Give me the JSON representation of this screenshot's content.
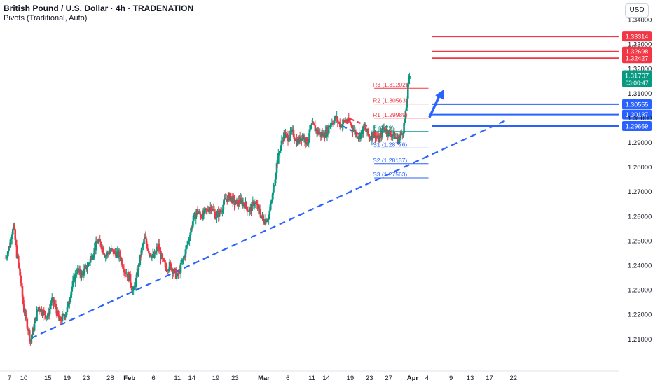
{
  "header": {
    "title": "British Pound / U.S. Dollar · 4h · TRADENATION",
    "subtitle": "Pivots (Traditional, Auto)"
  },
  "currency_button": "USD",
  "colors": {
    "up": "#089981",
    "down": "#f23645",
    "pivot_resistance": "#f23645",
    "pivot_support": "#2962ff",
    "trendline": "#2962ff",
    "price_badge": "#089981",
    "axis_text": "#131722"
  },
  "price_badge": {
    "price": "1.31707",
    "countdown": "03:00:47"
  },
  "chart_data": {
    "type": "candlestick",
    "symbol": "GBPUSD",
    "timeframe": "4h",
    "ylim": [
      1.2045,
      1.3445
    ],
    "y_ticks": [
      "1.34000",
      "1.33000",
      "1.32000",
      "1.31000",
      "1.30000",
      "1.29000",
      "1.28000",
      "1.27000",
      "1.26000",
      "1.25000",
      "1.24000",
      "1.23000",
      "1.22000",
      "1.21000"
    ],
    "x_ticks": [
      {
        "label": "7",
        "day": 7
      },
      {
        "label": "10",
        "day": 10
      },
      {
        "label": "15",
        "day": 15
      },
      {
        "label": "19",
        "day": 19
      },
      {
        "label": "23",
        "day": 23
      },
      {
        "label": "28",
        "day": 28
      },
      {
        "label": "Feb",
        "day": 32,
        "bold": true
      },
      {
        "label": "6",
        "day": 37
      },
      {
        "label": "11",
        "day": 42
      },
      {
        "label": "14",
        "day": 45
      },
      {
        "label": "19",
        "day": 50
      },
      {
        "label": "23",
        "day": 54
      },
      {
        "label": "Mar",
        "day": 60,
        "bold": true
      },
      {
        "label": "6",
        "day": 65
      },
      {
        "label": "11",
        "day": 70
      },
      {
        "label": "14",
        "day": 73
      },
      {
        "label": "19",
        "day": 78
      },
      {
        "label": "23",
        "day": 82
      },
      {
        "label": "27",
        "day": 86
      },
      {
        "label": "Apr",
        "day": 91,
        "bold": true
      },
      {
        "label": "4",
        "day": 94
      },
      {
        "label": "9",
        "day": 99
      },
      {
        "label": "13",
        "day": 103
      },
      {
        "label": "17",
        "day": 107
      },
      {
        "label": "22",
        "day": 112
      }
    ],
    "last_price": 1.31707,
    "price_path": [
      [
        6.2,
        1.243
      ],
      [
        7,
        1.248
      ],
      [
        7.8,
        1.257
      ],
      [
        8.5,
        1.245
      ],
      [
        9.2,
        1.236
      ],
      [
        10,
        1.222
      ],
      [
        10.8,
        1.215
      ],
      [
        11.4,
        1.209
      ],
      [
        12.2,
        1.216
      ],
      [
        13,
        1.223
      ],
      [
        14,
        1.221
      ],
      [
        15,
        1.219
      ],
      [
        15.8,
        1.226
      ],
      [
        16.6,
        1.223
      ],
      [
        17.4,
        1.217
      ],
      [
        18.2,
        1.219
      ],
      [
        19,
        1.222
      ],
      [
        20,
        1.231
      ],
      [
        21,
        1.238
      ],
      [
        22,
        1.236
      ],
      [
        23,
        1.239
      ],
      [
        23.8,
        1.242
      ],
      [
        24.6,
        1.246
      ],
      [
        25.4,
        1.25
      ],
      [
        26.2,
        1.248
      ],
      [
        27,
        1.244
      ],
      [
        28,
        1.246
      ],
      [
        29,
        1.245
      ],
      [
        30,
        1.244
      ],
      [
        31,
        1.238
      ],
      [
        32,
        1.235
      ],
      [
        32.8,
        1.229
      ],
      [
        33.6,
        1.236
      ],
      [
        34.4,
        1.245
      ],
      [
        35.2,
        1.251
      ],
      [
        36,
        1.246
      ],
      [
        37,
        1.243
      ],
      [
        38,
        1.248
      ],
      [
        38.8,
        1.242
      ],
      [
        39.6,
        1.239
      ],
      [
        40.4,
        1.24
      ],
      [
        41.2,
        1.238
      ],
      [
        42,
        1.235
      ],
      [
        42.8,
        1.24
      ],
      [
        43.6,
        1.245
      ],
      [
        44.4,
        1.251
      ],
      [
        45.2,
        1.258
      ],
      [
        46,
        1.262
      ],
      [
        47,
        1.26
      ],
      [
        48,
        1.262
      ],
      [
        49,
        1.264
      ],
      [
        50,
        1.26
      ],
      [
        51,
        1.262
      ],
      [
        52,
        1.267
      ],
      [
        53,
        1.268
      ],
      [
        54,
        1.265
      ],
      [
        55,
        1.266
      ],
      [
        56,
        1.265
      ],
      [
        57,
        1.262
      ],
      [
        58,
        1.266
      ],
      [
        59,
        1.262
      ],
      [
        60,
        1.258
      ],
      [
        61,
        1.26
      ],
      [
        61.8,
        1.268
      ],
      [
        62.6,
        1.28
      ],
      [
        63.4,
        1.288
      ],
      [
        64.2,
        1.293
      ],
      [
        65,
        1.292
      ],
      [
        66,
        1.294
      ],
      [
        67,
        1.29
      ],
      [
        68,
        1.293
      ],
      [
        69,
        1.29
      ],
      [
        70,
        1.297
      ],
      [
        71,
        1.295
      ],
      [
        72,
        1.293
      ],
      [
        73,
        1.294
      ],
      [
        74,
        1.298
      ],
      [
        75,
        1.3
      ],
      [
        76,
        1.297
      ],
      [
        77,
        1.299
      ],
      [
        78,
        1.298
      ],
      [
        79,
        1.294
      ],
      [
        80,
        1.293
      ],
      [
        81,
        1.296
      ],
      [
        82,
        1.292
      ],
      [
        83,
        1.294
      ],
      [
        84,
        1.291
      ],
      [
        85,
        1.296
      ],
      [
        86,
        1.294
      ],
      [
        87,
        1.293
      ],
      [
        88,
        1.291
      ],
      [
        89,
        1.295
      ],
      [
        89.6,
        1.302
      ],
      [
        90,
        1.312
      ],
      [
        90.4,
        1.317
      ]
    ],
    "pivots": [
      {
        "label": "R3",
        "value": "1.31202",
        "y": 1.31202,
        "kind": "resistance"
      },
      {
        "label": "R2",
        "value": "1.30563",
        "y": 1.30563,
        "kind": "resistance"
      },
      {
        "label": "R1",
        "value": "1.29989",
        "y": 1.29989,
        "kind": "resistance"
      },
      {
        "label": "P",
        "value": "1.29",
        "y": 1.2945,
        "kind": "pivot"
      },
      {
        "label": "S1",
        "value": "1.28776",
        "y": 1.28776,
        "kind": "support"
      },
      {
        "label": "S2",
        "value": "1.28137",
        "y": 1.28137,
        "kind": "support"
      },
      {
        "label": "S3",
        "value": "1.27563",
        "y": 1.27563,
        "kind": "support"
      }
    ],
    "resistance_lines": [
      {
        "value": "1.33314",
        "y": 1.33314
      },
      {
        "value": "1.32698",
        "y": 1.32698
      },
      {
        "value": "1.32427",
        "y": 1.32427
      }
    ],
    "support_lines": [
      {
        "value": "1.30555",
        "y": 1.30555
      },
      {
        "value": "1.30137",
        "y": 1.30137
      },
      {
        "value": "1.29669",
        "y": 1.29669
      }
    ],
    "trendline": {
      "from": [
        11.5,
        1.2103
      ],
      "to": [
        111,
        1.2995
      ],
      "style": "dashed"
    },
    "local_trendlines": [
      {
        "from": [
          78,
          1.2996
        ],
        "to": [
          82,
          1.2963
        ],
        "color": "red"
      },
      {
        "from": [
          76.5,
          1.2966
        ],
        "to": [
          80,
          1.2932
        ],
        "color": "blue"
      }
    ],
    "arrow": {
      "from": [
        94.5,
        1.3002
      ],
      "to": [
        97.5,
        1.3115
      ]
    }
  }
}
